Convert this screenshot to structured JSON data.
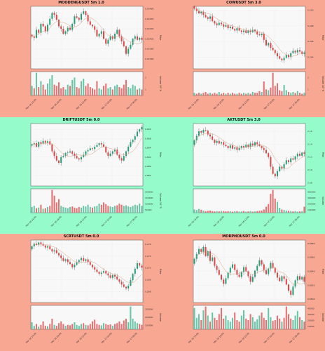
{
  "bands": [
    "#f8a792",
    "#96fbcb",
    "#f8a792"
  ],
  "colors": {
    "up": "#26a17b",
    "down": "#e04848",
    "wick": "#555555",
    "ma": "#d8a080",
    "volUp": "#66c6a6",
    "volDown": "#e87070"
  },
  "chart_data": [
    {
      "type": "candlestick",
      "title": "MOODENGUSDT 5m 1.0",
      "ylabel": "Price",
      "vlabel": "Volume 10^6",
      "ylim": [
        0.0234,
        0.02465
      ],
      "yticks": [
        "0.02460",
        "0.02440",
        "0.02420",
        "0.02400",
        "0.02380",
        "0.02360"
      ],
      "xticks": [
        "Mar 16 14:00",
        "Mar 16 18:00",
        "Mar 16 22:00",
        "Mar 17 02:00",
        "Mar 17 06:00"
      ],
      "vticks": [
        "2",
        "1"
      ],
      "close": [
        0.02405,
        0.02402,
        0.02418,
        0.02412,
        0.0243,
        0.02425,
        0.02415,
        0.02428,
        0.0244,
        0.02452,
        0.02448,
        0.02438,
        0.02425,
        0.0242,
        0.0241,
        0.02415,
        0.02422,
        0.02418,
        0.0243,
        0.02445,
        0.02442,
        0.02438,
        0.0245,
        0.02455,
        0.02448,
        0.02435,
        0.02428,
        0.02425,
        0.02418,
        0.02405,
        0.0241,
        0.02415,
        0.024,
        0.0239,
        0.02398,
        0.02405,
        0.024,
        0.0241,
        0.02418,
        0.02405,
        0.02395,
        0.02385,
        0.0237,
        0.0238,
        0.02388,
        0.024,
        0.02405,
        0.02398,
        0.02402,
        0.02398
      ],
      "volume": [
        0.8,
        0.6,
        1.9,
        0.7,
        1.2,
        0.9,
        0.5,
        1.0,
        1.4,
        1.7,
        0.9,
        0.8,
        1.1,
        0.6,
        0.7,
        0.5,
        0.9,
        0.8,
        1.3,
        1.5,
        0.7,
        0.6,
        1.2,
        1.4,
        0.8,
        1.0,
        0.7,
        0.6,
        0.5,
        1.2,
        0.6,
        0.5,
        0.8,
        1.0,
        0.6,
        0.7,
        0.5,
        0.8,
        0.9,
        0.7,
        0.6,
        0.9,
        1.3,
        0.7,
        0.6,
        0.9,
        0.8,
        0.5,
        0.6,
        0.5
      ]
    },
    {
      "type": "candlestick",
      "title": "COWUSDT 5m 3.0",
      "ylabel": "Price",
      "vlabel": "Volume 10^6",
      "ylim": [
        0.2425,
        0.2505
      ],
      "yticks": [
        "0.250",
        "0.248",
        "0.246",
        "0.244"
      ],
      "xticks": [
        "Mar 16 14:00",
        "Mar 16 18:00",
        "Mar 16 22:00",
        "Mar 17 02:00",
        "Mar 17 06:00"
      ],
      "vticks": [
        "2",
        "1"
      ],
      "close": [
        0.2502,
        0.2499,
        0.2496,
        0.2498,
        0.2494,
        0.2491,
        0.2489,
        0.2492,
        0.2486,
        0.2483,
        0.2481,
        0.2484,
        0.2482,
        0.2479,
        0.2481,
        0.2477,
        0.2479,
        0.2476,
        0.2474,
        0.2477,
        0.2474,
        0.2472,
        0.2474,
        0.2471,
        0.2474,
        0.2472,
        0.2475,
        0.2473,
        0.2469,
        0.2468,
        0.247,
        0.2462,
        0.2455,
        0.2458,
        0.2452,
        0.2449,
        0.2445,
        0.2441,
        0.2438,
        0.2436,
        0.2439,
        0.2443,
        0.244,
        0.2445,
        0.2448,
        0.2446,
        0.2449,
        0.2447,
        0.2444,
        0.2446
      ],
      "volume": [
        0.3,
        0.2,
        0.3,
        0.2,
        0.3,
        0.4,
        0.2,
        0.3,
        0.2,
        0.3,
        0.2,
        0.4,
        0.2,
        0.3,
        0.2,
        0.3,
        0.2,
        0.3,
        0.2,
        0.2,
        0.3,
        0.2,
        0.3,
        0.2,
        0.3,
        0.2,
        0.4,
        0.3,
        0.3,
        0.5,
        0.4,
        1.6,
        0.7,
        0.6,
        0.9,
        2.6,
        1.1,
        1.4,
        0.6,
        0.5,
        1.2,
        0.6,
        0.4,
        0.3,
        0.4,
        0.3,
        0.5,
        0.3,
        0.2,
        0.3
      ]
    },
    {
      "type": "candlestick",
      "title": "DRIFTUSDT 5m 0.0",
      "ylabel": "Price",
      "vlabel": "Volume 10^5",
      "ylim": [
        0.8775,
        0.9045
      ],
      "yticks": [
        "0.902",
        "0.898",
        "0.894",
        "0.890",
        "0.886",
        "0.882"
      ],
      "xticks": [
        "Mar 16 14:00",
        "Mar 16 18:00",
        "Mar 16 22:00",
        "Mar 17 02:00",
        "Mar 17 06:00"
      ],
      "vticks": [
        "200000",
        "150000",
        "100000",
        "50000"
      ],
      "close": [
        0.8955,
        0.896,
        0.8945,
        0.8965,
        0.8958,
        0.897,
        0.8962,
        0.8968,
        0.8955,
        0.8925,
        0.8905,
        0.8885,
        0.8875,
        0.89,
        0.8905,
        0.8918,
        0.892,
        0.8925,
        0.8915,
        0.8905,
        0.8895,
        0.889,
        0.89,
        0.891,
        0.8925,
        0.893,
        0.8938,
        0.8935,
        0.8945,
        0.8952,
        0.896,
        0.8955,
        0.8945,
        0.892,
        0.8905,
        0.8915,
        0.8925,
        0.8932,
        0.891,
        0.8895,
        0.8885,
        0.8905,
        0.8925,
        0.8945,
        0.8965,
        0.8975,
        0.899,
        0.901,
        0.902,
        0.903
      ],
      "volume": [
        50000,
        60000,
        40000,
        45000,
        70000,
        35000,
        40000,
        50000,
        60000,
        200000,
        150000,
        90000,
        120000,
        60000,
        50000,
        45000,
        40000,
        50000,
        55000,
        45000,
        40000,
        50000,
        45000,
        60000,
        55000,
        70000,
        50000,
        45000,
        55000,
        60000,
        80000,
        70000,
        90000,
        75000,
        60000,
        55000,
        50000,
        60000,
        65000,
        80000,
        70000,
        60000,
        65000,
        55000,
        50000,
        60000,
        70000,
        65000,
        80000,
        60000
      ]
    },
    {
      "type": "candlestick",
      "title": "AKTUSDT 5m 3.0",
      "ylabel": "Price",
      "vlabel": "Volume",
      "ylim": [
        2.075,
        2.172
      ],
      "yticks": [
        "2.16",
        "2.14",
        "2.12",
        "2.10",
        "2.08"
      ],
      "xticks": [
        "Mar 16 14:00",
        "Mar 16 18:00",
        "Mar 16 22:00",
        "Mar 17 02:00",
        "Mar 17 06:00"
      ],
      "vticks": [
        "400000",
        "300000",
        "200000",
        "100000"
      ],
      "close": [
        2.146,
        2.153,
        2.16,
        2.158,
        2.162,
        2.161,
        2.155,
        2.152,
        2.147,
        2.142,
        2.145,
        2.141,
        2.143,
        2.139,
        2.137,
        2.134,
        2.138,
        2.133,
        2.135,
        2.131,
        2.134,
        2.137,
        2.135,
        2.139,
        2.136,
        2.141,
        2.138,
        2.143,
        2.14,
        2.137,
        2.134,
        2.131,
        2.126,
        2.12,
        2.105,
        2.094,
        2.09,
        2.098,
        2.105,
        2.102,
        2.109,
        2.115,
        2.112,
        2.118,
        2.116,
        2.121,
        2.125,
        2.122,
        2.127,
        2.125
      ],
      "volume": [
        60000,
        50000,
        70000,
        55000,
        40000,
        30000,
        35000,
        40000,
        30000,
        25000,
        30000,
        25000,
        35000,
        30000,
        25000,
        30000,
        25000,
        20000,
        25000,
        30000,
        20000,
        25000,
        30000,
        20000,
        25000,
        30000,
        20000,
        25000,
        30000,
        35000,
        40000,
        60000,
        110000,
        160000,
        350000,
        420000,
        260000,
        200000,
        90000,
        60000,
        50000,
        40000,
        35000,
        30000,
        25000,
        30000,
        20000,
        25000,
        30000,
        110000
      ]
    },
    {
      "type": "candlestick",
      "title": "SCRTUSDT 5m 0.0",
      "ylabel": "Price",
      "vlabel": "Volume",
      "ylim": [
        0.2632,
        0.2791
      ],
      "yticks": [
        "0.278",
        "0.275",
        "0.272",
        "0.269",
        "0.266"
      ],
      "xticks": [
        "Mar 16 14:00",
        "Mar 16 18:00",
        "Mar 16 22:00",
        "Mar 17 02:00",
        "Mar 17 06:00"
      ],
      "vticks": [
        "300000",
        "200000",
        "100000"
      ],
      "close": [
        0.2775,
        0.2782,
        0.2779,
        0.2785,
        0.2781,
        0.2777,
        0.2772,
        0.2775,
        0.2768,
        0.2762,
        0.2765,
        0.2758,
        0.2752,
        0.2745,
        0.2738,
        0.2742,
        0.2735,
        0.273,
        0.2722,
        0.2728,
        0.2735,
        0.274,
        0.2745,
        0.2738,
        0.2742,
        0.2735,
        0.2728,
        0.2722,
        0.2716,
        0.271,
        0.2705,
        0.2708,
        0.2712,
        0.2706,
        0.2701,
        0.2695,
        0.2702,
        0.2698,
        0.2691,
        0.2685,
        0.2678,
        0.2672,
        0.2668,
        0.2675,
        0.2689,
        0.2705,
        0.2718,
        0.2732,
        0.2726,
        0.2721
      ],
      "volume": [
        80000,
        40000,
        60000,
        30000,
        50000,
        90000,
        40000,
        35000,
        60000,
        120000,
        50000,
        40000,
        70000,
        90000,
        60000,
        40000,
        50000,
        45000,
        60000,
        80000,
        50000,
        40000,
        60000,
        70000,
        50000,
        45000,
        60000,
        90000,
        110000,
        60000,
        50000,
        45000,
        70000,
        60000,
        50000,
        55000,
        40000,
        60000,
        70000,
        90000,
        60000,
        100000,
        120000,
        80000,
        260000,
        120000,
        90000,
        70000,
        60000,
        50000
      ]
    },
    {
      "type": "candlestick",
      "title": "MORPHOUSDT 5m 0.0",
      "ylabel": "Price",
      "vlabel": "Volume",
      "ylim": [
        0.8495,
        0.8585
      ],
      "yticks": [
        "0.8580",
        "0.8560",
        "0.8540",
        "0.8520",
        "0.8500"
      ],
      "xticks": [
        "Mar 16 14:00",
        "Mar 16 18:00",
        "Mar 16 22:00",
        "Mar 17 02:00",
        "Mar 17 06:00"
      ],
      "vticks": [
        "40000",
        "30000",
        "20000",
        "10000"
      ],
      "close": [
        0.8558,
        0.8565,
        0.8572,
        0.8568,
        0.8575,
        0.8562,
        0.8569,
        0.8555,
        0.856,
        0.8548,
        0.8542,
        0.8535,
        0.8528,
        0.8522,
        0.853,
        0.8538,
        0.8545,
        0.855,
        0.8542,
        0.8535,
        0.8532,
        0.8539,
        0.8546,
        0.854,
        0.8533,
        0.8525,
        0.8532,
        0.8541,
        0.8548,
        0.8556,
        0.855,
        0.8542,
        0.8536,
        0.8544,
        0.8552,
        0.8545,
        0.8538,
        0.8531,
        0.8526,
        0.8533,
        0.8529,
        0.8521,
        0.8512,
        0.8506,
        0.8518,
        0.8527,
        0.8533,
        0.8528,
        0.8532,
        0.8525
      ],
      "volume": [
        28000,
        15000,
        20000,
        12000,
        25000,
        30000,
        18000,
        10000,
        22000,
        15000,
        12000,
        20000,
        28000,
        14000,
        18000,
        12000,
        10000,
        15000,
        22000,
        12000,
        10000,
        18000,
        25000,
        14000,
        12000,
        20000,
        16000,
        10000,
        13000,
        18000,
        22000,
        15000,
        12000,
        28000,
        16000,
        11000,
        12000,
        18000,
        14000,
        10000,
        15000,
        30000,
        20000,
        14000,
        12000,
        18000,
        24000,
        16000,
        12000,
        10000
      ]
    }
  ]
}
